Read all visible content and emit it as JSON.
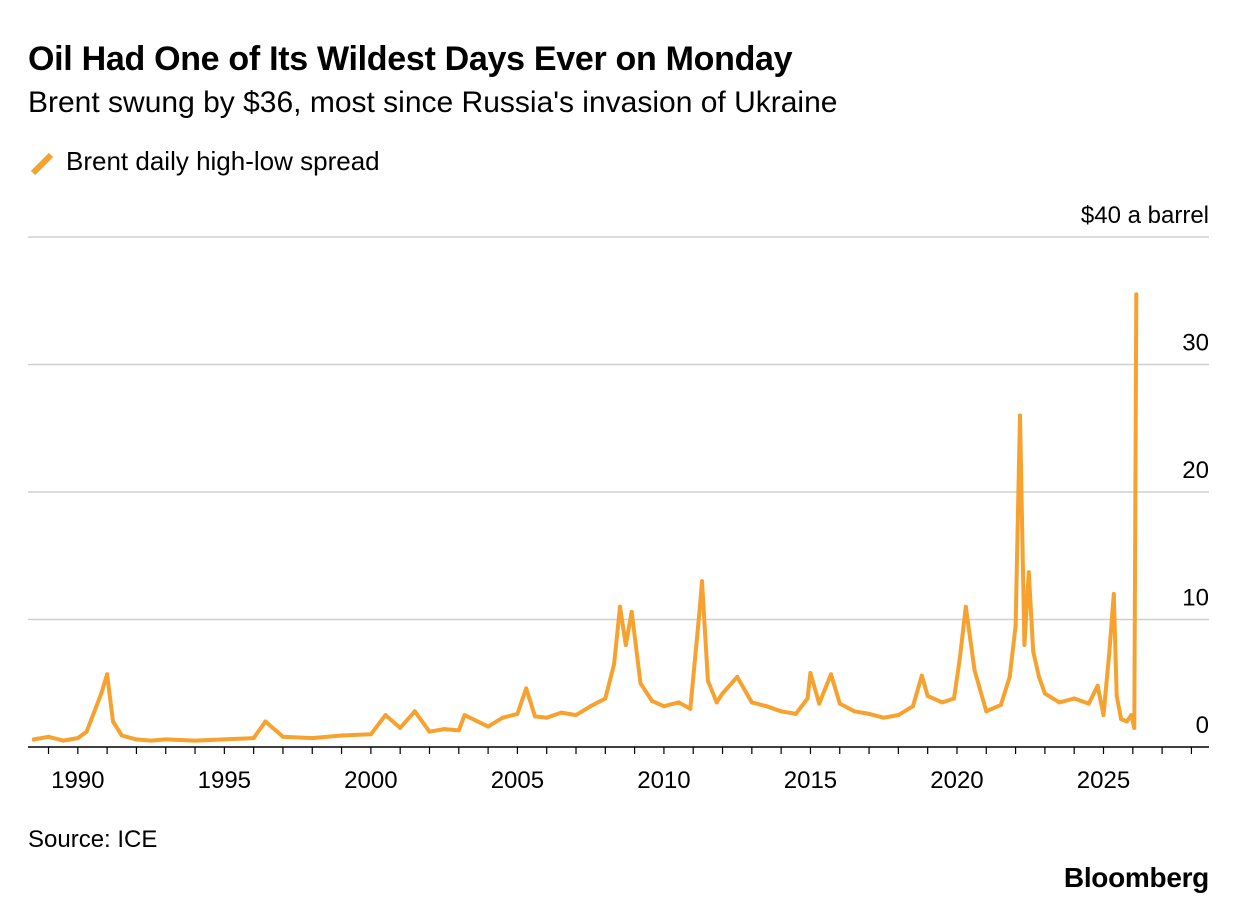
{
  "header": {
    "title": "Oil Had One of Its Wildest Days Ever on Monday",
    "subtitle": "Brent swung by $36, most since Russia's invasion of Ukraine"
  },
  "legend": {
    "label": "Brent daily high-low spread",
    "color": "#F7A12F"
  },
  "footer": {
    "source": "Source: ICE",
    "brand": "Bloomberg"
  },
  "colors": {
    "series": "#F7A12F",
    "grid": "#D0D0D0",
    "axis": "#000000"
  },
  "chart_data": {
    "type": "line",
    "title": "Oil Had One of Its Wildest Days Ever on Monday",
    "subtitle": "Brent swung by $36, most since Russia's invasion of Ukraine",
    "xlabel": "",
    "ylabel": "",
    "x_ticks": [
      "1990",
      "1995",
      "2000",
      "2005",
      "2010",
      "2015",
      "2020",
      "2025"
    ],
    "x_tick_values": [
      1990,
      1995,
      2000,
      2005,
      2010,
      2015,
      2020,
      2025
    ],
    "y_ticks": [
      0,
      10,
      20,
      30,
      40
    ],
    "y_tick_labels": [
      "0",
      "10",
      "20",
      "30",
      "$40 a barrel"
    ],
    "xlim": [
      1988.3,
      2028.6
    ],
    "ylim": [
      0,
      40
    ],
    "grid": true,
    "legend_position": "top-left",
    "series": [
      {
        "name": "Brent daily high-low spread",
        "approximate": true,
        "x": [
          1988.5,
          1989.0,
          1989.5,
          1990.0,
          1990.3,
          1990.6,
          1990.8,
          1991.0,
          1991.2,
          1991.5,
          1992.0,
          1992.5,
          1993.0,
          1994.0,
          1995.0,
          1996.0,
          1996.4,
          1997.0,
          1998.0,
          1999.0,
          2000.0,
          2000.5,
          2001.0,
          2001.5,
          2002.0,
          2002.5,
          2003.0,
          2003.2,
          2004.0,
          2004.5,
          2005.0,
          2005.3,
          2005.6,
          2006.0,
          2006.5,
          2007.0,
          2007.5,
          2008.0,
          2008.3,
          2008.5,
          2008.7,
          2008.9,
          2009.2,
          2009.6,
          2010.0,
          2010.5,
          2010.9,
          2011.2,
          2011.3,
          2011.5,
          2011.8,
          2012.0,
          2012.5,
          2013.0,
          2013.5,
          2014.0,
          2014.5,
          2014.9,
          2015.0,
          2015.3,
          2015.7,
          2016.0,
          2016.5,
          2017.0,
          2017.5,
          2018.0,
          2018.5,
          2018.8,
          2019.0,
          2019.5,
          2019.9,
          2020.1,
          2020.3,
          2020.6,
          2021.0,
          2021.5,
          2021.8,
          2022.0,
          2022.15,
          2022.3,
          2022.45,
          2022.6,
          2022.8,
          2023.0,
          2023.5,
          2024.0,
          2024.5,
          2024.8,
          2025.0,
          2025.2,
          2025.35,
          2025.45,
          2025.6,
          2025.8,
          2025.95,
          2026.05,
          2026.12
        ],
        "values": [
          0.6,
          0.8,
          0.5,
          0.7,
          1.2,
          3.0,
          4.2,
          5.7,
          2.0,
          0.9,
          0.6,
          0.5,
          0.6,
          0.5,
          0.6,
          0.7,
          2.0,
          0.8,
          0.7,
          0.9,
          1.0,
          2.5,
          1.5,
          2.8,
          1.2,
          1.4,
          1.3,
          2.5,
          1.6,
          2.3,
          2.6,
          4.6,
          2.4,
          2.3,
          2.7,
          2.5,
          3.2,
          3.8,
          6.5,
          11.0,
          8.0,
          10.6,
          5.0,
          3.6,
          3.2,
          3.5,
          3.0,
          10.3,
          13.0,
          5.2,
          3.5,
          4.2,
          5.5,
          3.5,
          3.2,
          2.8,
          2.6,
          3.8,
          5.8,
          3.4,
          5.7,
          3.4,
          2.8,
          2.6,
          2.3,
          2.5,
          3.2,
          5.6,
          4.0,
          3.5,
          3.8,
          7.0,
          11.0,
          6.0,
          2.8,
          3.3,
          5.5,
          9.5,
          26.0,
          8.0,
          13.7,
          7.5,
          5.5,
          4.2,
          3.5,
          3.8,
          3.4,
          4.8,
          2.5,
          7.5,
          12.0,
          4.0,
          2.2,
          2.0,
          2.5,
          1.5,
          35.5
        ]
      }
    ]
  }
}
